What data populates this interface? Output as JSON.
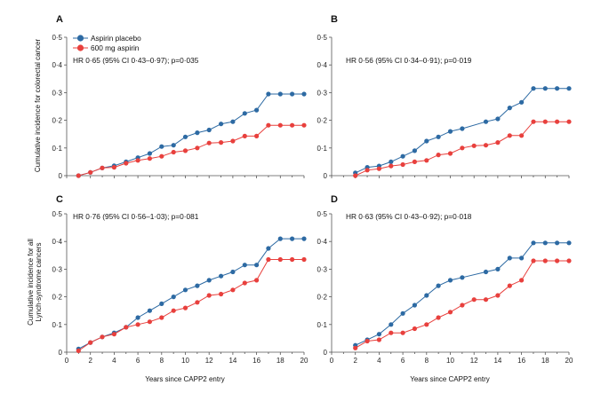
{
  "figure": {
    "y_title_top": "Cumulative incidence for colorectal cancer",
    "y_title_bottom_line1": "Cumulative incidence for all",
    "y_title_bottom_line2": "Lynch-syndrome cancers",
    "x_title": "Years since CAPP2 entry"
  },
  "legend": {
    "items": [
      {
        "label": "Aspirin placebo",
        "color": "#2d6aa3"
      },
      {
        "label": "600 mg aspirin",
        "color": "#e8403d"
      }
    ]
  },
  "chart_data": [
    {
      "type": "line",
      "panel": "A",
      "annotation": "HR 0·65 (95% CI 0·43–0·97); p=0·035",
      "xlabel": "",
      "ylabel": "Cumulative incidence for colorectal cancer",
      "xlim": [
        0,
        20
      ],
      "ylim": [
        0,
        0.5
      ],
      "x_ticks": [
        "0",
        "2",
        "4",
        "6",
        "8",
        "10",
        "12",
        "14",
        "16",
        "18",
        "20"
      ],
      "y_ticks": [
        "0",
        "0·1",
        "0·2",
        "0·3",
        "0·4",
        "0·5"
      ],
      "series": [
        {
          "name": "Aspirin placebo",
          "color": "#2d6aa3",
          "x": [
            1,
            2,
            3,
            4,
            5,
            6,
            7,
            8,
            9,
            10,
            11,
            12,
            13,
            14,
            15,
            16,
            17,
            18,
            19,
            20
          ],
          "y": [
            0.0,
            0.012,
            0.028,
            0.036,
            0.05,
            0.065,
            0.08,
            0.105,
            0.11,
            0.14,
            0.155,
            0.165,
            0.187,
            0.195,
            0.225,
            0.237,
            0.295,
            0.295,
            0.295,
            0.295
          ]
        },
        {
          "name": "600 mg aspirin",
          "color": "#e8403d",
          "x": [
            1,
            2,
            3,
            4,
            5,
            6,
            7,
            8,
            9,
            10,
            11,
            12,
            13,
            14,
            15,
            16,
            17,
            18,
            19,
            20
          ],
          "y": [
            0.0,
            0.012,
            0.028,
            0.03,
            0.045,
            0.055,
            0.062,
            0.07,
            0.085,
            0.09,
            0.1,
            0.118,
            0.12,
            0.125,
            0.143,
            0.143,
            0.182,
            0.182,
            0.182,
            0.182
          ]
        }
      ]
    },
    {
      "type": "line",
      "panel": "B",
      "annotation": "HR 0·56 (95% CI 0·34–0·91); p=0·019",
      "xlabel": "",
      "ylabel": "",
      "xlim": [
        0,
        20
      ],
      "ylim": [
        0,
        0.5
      ],
      "x_ticks": [
        "0",
        "2",
        "4",
        "6",
        "8",
        "10",
        "12",
        "14",
        "16",
        "18",
        "20"
      ],
      "y_ticks": [
        "0",
        "0·1",
        "0·2",
        "0·3",
        "0·4",
        "0·5"
      ],
      "series": [
        {
          "name": "Aspirin placebo",
          "color": "#2d6aa3",
          "x": [
            2,
            3,
            4,
            5,
            6,
            7,
            8,
            9,
            10,
            11,
            13,
            14,
            15,
            16,
            17,
            18,
            19,
            20
          ],
          "y": [
            0.01,
            0.03,
            0.035,
            0.05,
            0.07,
            0.09,
            0.125,
            0.14,
            0.16,
            0.17,
            0.195,
            0.205,
            0.245,
            0.265,
            0.315,
            0.315,
            0.315,
            0.315
          ]
        },
        {
          "name": "600 mg aspirin",
          "color": "#e8403d",
          "x": [
            2,
            3,
            4,
            5,
            6,
            7,
            8,
            9,
            10,
            11,
            12,
            13,
            14,
            15,
            16,
            17,
            18,
            19,
            20
          ],
          "y": [
            0.0,
            0.02,
            0.025,
            0.035,
            0.04,
            0.05,
            0.055,
            0.075,
            0.08,
            0.1,
            0.108,
            0.11,
            0.12,
            0.145,
            0.145,
            0.195,
            0.195,
            0.195,
            0.195
          ]
        }
      ]
    },
    {
      "type": "line",
      "panel": "C",
      "annotation": "HR 0·76 (95% CI 0·56–1·03); p=0·081",
      "xlabel": "Years since CAPP2 entry",
      "ylabel": "Cumulative incidence for all Lynch-syndrome cancers",
      "xlim": [
        0,
        20
      ],
      "ylim": [
        0,
        0.5
      ],
      "x_ticks": [
        "0",
        "2",
        "4",
        "6",
        "8",
        "10",
        "12",
        "14",
        "16",
        "18",
        "20"
      ],
      "y_ticks": [
        "0",
        "0·1",
        "0·2",
        "0·3",
        "0·4",
        "0·5"
      ],
      "series": [
        {
          "name": "Aspirin placebo",
          "color": "#2d6aa3",
          "x": [
            1,
            2,
            3,
            4,
            5,
            6,
            7,
            8,
            9,
            10,
            11,
            12,
            13,
            14,
            15,
            16,
            17,
            18,
            19,
            20
          ],
          "y": [
            0.012,
            0.035,
            0.055,
            0.07,
            0.09,
            0.125,
            0.15,
            0.175,
            0.2,
            0.225,
            0.24,
            0.26,
            0.275,
            0.29,
            0.315,
            0.315,
            0.375,
            0.41,
            0.41,
            0.41
          ]
        },
        {
          "name": "600 mg aspirin",
          "color": "#e8403d",
          "x": [
            1,
            2,
            3,
            4,
            5,
            6,
            7,
            8,
            9,
            10,
            11,
            12,
            13,
            14,
            15,
            16,
            17,
            18,
            19,
            20
          ],
          "y": [
            0.005,
            0.035,
            0.055,
            0.065,
            0.09,
            0.1,
            0.11,
            0.125,
            0.15,
            0.16,
            0.18,
            0.205,
            0.21,
            0.225,
            0.25,
            0.26,
            0.335,
            0.335,
            0.335,
            0.335
          ]
        }
      ]
    },
    {
      "type": "line",
      "panel": "D",
      "annotation": "HR 0·63 (95% CI 0·43–0·92); p=0·018",
      "xlabel": "Years since CAPP2 entry",
      "ylabel": "",
      "xlim": [
        0,
        20
      ],
      "ylim": [
        0,
        0.5
      ],
      "x_ticks": [
        "0",
        "2",
        "4",
        "6",
        "8",
        "10",
        "12",
        "14",
        "16",
        "18",
        "20"
      ],
      "y_ticks": [
        "0",
        "0·1",
        "0·2",
        "0·3",
        "0·4",
        "0·5"
      ],
      "series": [
        {
          "name": "Aspirin placebo",
          "color": "#2d6aa3",
          "x": [
            2,
            3,
            4,
            5,
            6,
            7,
            8,
            9,
            10,
            11,
            13,
            14,
            15,
            16,
            17,
            18,
            19,
            20
          ],
          "y": [
            0.025,
            0.045,
            0.065,
            0.1,
            0.14,
            0.17,
            0.205,
            0.24,
            0.26,
            0.27,
            0.29,
            0.3,
            0.34,
            0.34,
            0.395,
            0.395,
            0.395,
            0.395
          ]
        },
        {
          "name": "600 mg aspirin",
          "color": "#e8403d",
          "x": [
            2,
            3,
            4,
            5,
            6,
            7,
            8,
            9,
            10,
            11,
            12,
            13,
            14,
            15,
            16,
            17,
            18,
            19,
            20
          ],
          "y": [
            0.015,
            0.04,
            0.045,
            0.07,
            0.07,
            0.085,
            0.1,
            0.125,
            0.145,
            0.17,
            0.19,
            0.19,
            0.205,
            0.24,
            0.26,
            0.33,
            0.33,
            0.33,
            0.33
          ]
        }
      ]
    }
  ]
}
